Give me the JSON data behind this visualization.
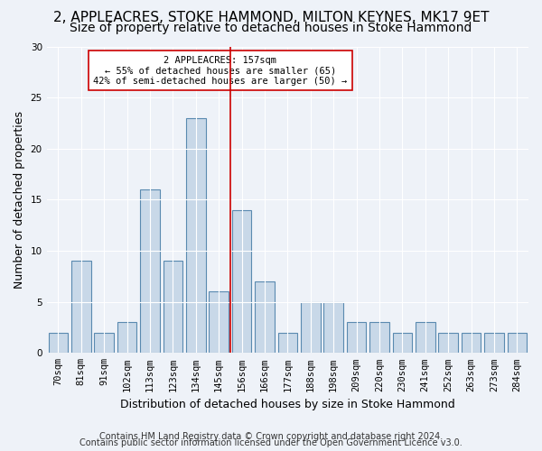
{
  "title1": "2, APPLEACRES, STOKE HAMMOND, MILTON KEYNES, MK17 9ET",
  "title2": "Size of property relative to detached houses in Stoke Hammond",
  "xlabel": "Distribution of detached houses by size in Stoke Hammond",
  "ylabel": "Number of detached properties",
  "categories": [
    "70sqm",
    "81sqm",
    "91sqm",
    "102sqm",
    "113sqm",
    "123sqm",
    "134sqm",
    "145sqm",
    "156sqm",
    "166sqm",
    "177sqm",
    "188sqm",
    "198sqm",
    "209sqm",
    "220sqm",
    "230sqm",
    "241sqm",
    "252sqm",
    "263sqm",
    "273sqm",
    "284sqm"
  ],
  "values": [
    2,
    9,
    2,
    3,
    16,
    9,
    23,
    6,
    14,
    7,
    2,
    5,
    5,
    3,
    3,
    2,
    3,
    2,
    2,
    2,
    2
  ],
  "bar_color": "#c8d8e8",
  "bar_edge_color": "#5a8ab0",
  "vline_color": "#cc0000",
  "annotation_title": "2 APPLEACRES: 157sqm",
  "annotation_line1": "← 55% of detached houses are smaller (65)",
  "annotation_line2": "42% of semi-detached houses are larger (50) →",
  "annotation_box_color": "#ffffff",
  "annotation_box_edge": "#cc0000",
  "ylim": [
    0,
    30
  ],
  "yticks": [
    0,
    5,
    10,
    15,
    20,
    25,
    30
  ],
  "footer1": "Contains HM Land Registry data © Crown copyright and database right 2024.",
  "footer2": "Contains public sector information licensed under the Open Government Licence v3.0.",
  "bg_color": "#eef2f8",
  "plot_bg_color": "#eef2f8",
  "title1_fontsize": 11,
  "title2_fontsize": 10,
  "xlabel_fontsize": 9,
  "ylabel_fontsize": 9,
  "tick_fontsize": 7.5,
  "footer_fontsize": 7
}
